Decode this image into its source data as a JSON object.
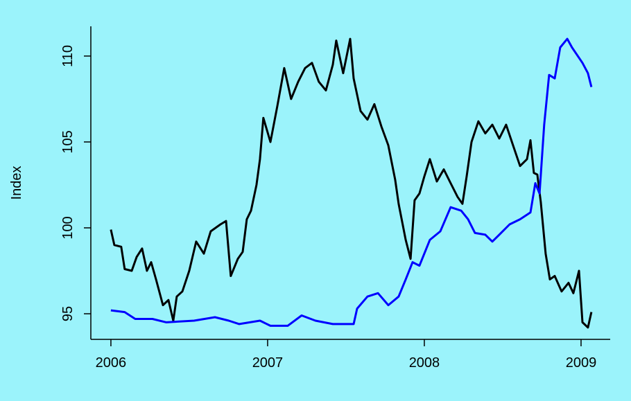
{
  "chart_data": {
    "type": "line",
    "ylabel": "Index",
    "xlim": [
      2005.872,
      2009.186
    ],
    "ylim": [
      93.51,
      111.73
    ],
    "xticks": [
      2006,
      2007,
      2008,
      2009
    ],
    "yticks": [
      95,
      100,
      105,
      110
    ],
    "series": [
      {
        "color": "#000000",
        "x": [
          2006.0,
          2006.022,
          2006.066,
          2006.088,
          2006.133,
          2006.164,
          2006.199,
          2006.23,
          2006.257,
          2006.288,
          2006.332,
          2006.367,
          2006.398,
          2006.42,
          2006.456,
          2006.5,
          2006.544,
          2006.593,
          2006.637,
          2006.699,
          2006.735,
          2006.765,
          2006.81,
          2006.841,
          2006.867,
          2006.894,
          2006.929,
          2006.951,
          2006.973,
          2007.018,
          2007.062,
          2007.106,
          2007.15,
          2007.195,
          2007.239,
          2007.283,
          2007.327,
          2007.372,
          2007.416,
          2007.438,
          2007.482,
          2007.527,
          2007.549,
          2007.593,
          2007.637,
          2007.681,
          2007.726,
          2007.77,
          2007.814,
          2007.836,
          2007.881,
          2007.912,
          2007.938,
          2007.969,
          2008.0,
          2008.035,
          2008.08,
          2008.124,
          2008.168,
          2008.212,
          2008.243,
          2008.27,
          2008.301,
          2008.345,
          2008.389,
          2008.434,
          2008.478,
          2008.522,
          2008.566,
          2008.611,
          2008.655,
          2008.677,
          2008.699,
          2008.721,
          2008.743,
          2008.774,
          2008.801,
          2008.832,
          2008.876,
          2008.92,
          2008.951,
          2008.987,
          2009.009,
          2009.044,
          2009.066
        ],
        "values": [
          99.9,
          99.0,
          98.9,
          97.6,
          97.5,
          98.3,
          98.8,
          97.5,
          98.0,
          97.0,
          95.5,
          95.8,
          94.6,
          96.0,
          96.3,
          97.5,
          99.2,
          98.5,
          99.8,
          100.2,
          100.4,
          97.2,
          98.2,
          98.6,
          100.5,
          101.0,
          102.5,
          104.0,
          106.4,
          105.0,
          107.1,
          109.3,
          107.5,
          108.5,
          109.3,
          109.6,
          108.5,
          108.0,
          109.5,
          110.9,
          109.0,
          111.0,
          108.7,
          106.8,
          106.3,
          107.2,
          105.9,
          104.8,
          102.8,
          101.4,
          99.3,
          98.2,
          101.6,
          102.0,
          103.0,
          104.0,
          102.7,
          103.4,
          102.6,
          101.8,
          101.4,
          103.0,
          105.0,
          106.2,
          105.5,
          106.0,
          105.2,
          106.0,
          104.8,
          103.6,
          104.0,
          105.1,
          103.2,
          103.1,
          101.5,
          98.5,
          97.0,
          97.2,
          96.3,
          96.8,
          96.2,
          97.5,
          94.5,
          94.2,
          95.1
        ]
      },
      {
        "color": "#0000ff",
        "x": [
          2006.0,
          2006.088,
          2006.155,
          2006.265,
          2006.354,
          2006.531,
          2006.664,
          2006.752,
          2006.819,
          2006.951,
          2007.018,
          2007.128,
          2007.217,
          2007.305,
          2007.416,
          2007.549,
          2007.571,
          2007.637,
          2007.704,
          2007.77,
          2007.836,
          2007.881,
          2007.925,
          2007.969,
          2008.035,
          2008.102,
          2008.168,
          2008.235,
          2008.279,
          2008.323,
          2008.389,
          2008.434,
          2008.478,
          2008.544,
          2008.611,
          2008.677,
          2008.708,
          2008.735,
          2008.765,
          2008.796,
          2008.832,
          2008.867,
          2008.912,
          2008.942,
          2009.009,
          2009.044,
          2009.066
        ],
        "values": [
          95.2,
          95.1,
          94.7,
          94.7,
          94.5,
          94.6,
          94.8,
          94.6,
          94.4,
          94.6,
          94.3,
          94.3,
          94.9,
          94.6,
          94.4,
          94.4,
          95.3,
          96.0,
          96.2,
          95.5,
          96.0,
          97.0,
          98.0,
          97.8,
          99.3,
          99.8,
          101.2,
          101.0,
          100.5,
          99.7,
          99.6,
          99.2,
          99.6,
          100.2,
          100.5,
          100.9,
          102.6,
          102.0,
          106.0,
          108.9,
          108.7,
          110.5,
          111.0,
          110.5,
          109.6,
          109.0,
          108.2
        ]
      }
    ]
  }
}
